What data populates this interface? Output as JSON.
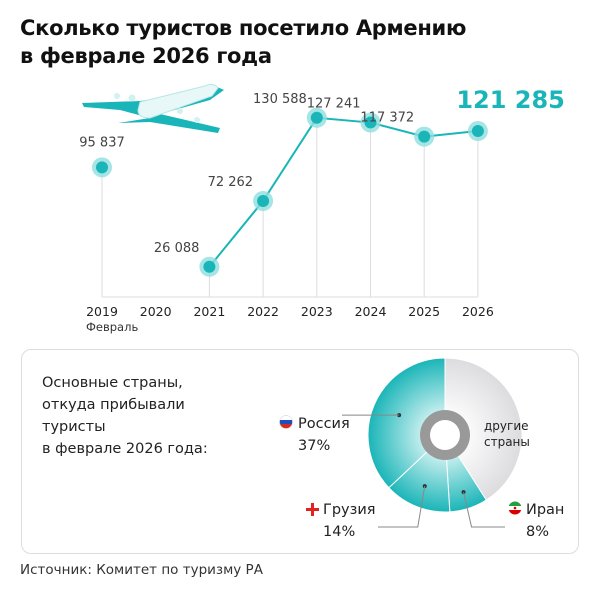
{
  "title": {
    "line1": "Сколько туристов посетило Армению",
    "line2": "в феврале 2026 года"
  },
  "colors": {
    "accent": "#1ab5b8",
    "halo": "#8fdfe0",
    "grid": "#dddddd",
    "others": "#e6e6e8",
    "ring": "#999999"
  },
  "chart_data": [
    {
      "type": "line",
      "title": "Сколько туристов посетило Армению в феврале 2026 года",
      "categories": [
        "2019",
        "2020",
        "2021",
        "2022",
        "2023",
        "2024",
        "2025",
        "2026"
      ],
      "x_sublabel": "Февраль",
      "values": [
        95837,
        null,
        26088,
        72262,
        130588,
        127241,
        117372,
        121285
      ],
      "value_labels": [
        "95 837",
        "",
        "26 088",
        "72 262",
        "130 588",
        "127 241",
        "117 372",
        "121 285"
      ],
      "highlight_last": true,
      "grid": false,
      "line_connects": "2021–2026"
    },
    {
      "type": "pie",
      "style": "donut",
      "caption": "Основные страны, откуда прибывали туристы в феврале 2026 года:",
      "caption_lines": [
        "Основные страны,",
        "откуда прибывали",
        "туристы",
        "в феврале 2026 года:"
      ],
      "slices": [
        {
          "name": "Россия",
          "value": 37,
          "label": "37%",
          "flag": "russia-flag-icon"
        },
        {
          "name": "Грузия",
          "value": 14,
          "label": "14%",
          "flag": "georgia-flag-icon"
        },
        {
          "name": "Иран",
          "value": 8,
          "label": "8%",
          "flag": "iran-flag-icon"
        },
        {
          "name": "другие страны",
          "name_lines": [
            "другие",
            "страны"
          ]
        }
      ]
    }
  ],
  "source": "Источник: Комитет по туризму РА",
  "decor": {
    "icon": "airplane-icon"
  }
}
